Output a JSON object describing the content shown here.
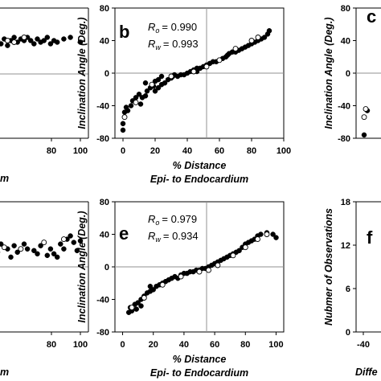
{
  "panels": {
    "a": {
      "xticks": [
        "80",
        "100"
      ],
      "xlabel_fragment": "m"
    },
    "b": {
      "letter": "b",
      "r_o_symbol": "R",
      "r_o_sub": "o",
      "r_o_value": "= 0.990",
      "r_w_symbol": "R",
      "r_w_sub": "w",
      "r_w_value": "= 0.993",
      "ylabel": "Inclination Angle (Deg.)",
      "xlabel_1": "% Distance",
      "xlabel_2": "Epi- to Endocardium"
    },
    "c": {
      "letter": "c",
      "ylabel": "Inclination Angle (Deg.)"
    },
    "d": {
      "xticks": [
        "80",
        "100"
      ],
      "xlabel_fragment": "m"
    },
    "e": {
      "letter": "e",
      "r_o_symbol": "R",
      "r_o_sub": "o",
      "r_o_value": "= 0.979",
      "r_w_symbol": "R",
      "r_w_sub": "w",
      "r_w_value": "= 0.934",
      "ylabel": "Inclination Angle (Deg.)",
      "xlabel_1": "% Distance",
      "xlabel_2": "Epi- to Endocardium"
    },
    "f": {
      "letter": "f",
      "ylabel": "Nubmer of Observations",
      "xlabel_fragment": "Diffe",
      "xtick_first": "-40"
    }
  },
  "colors": {
    "filled_marker": "#000000",
    "open_marker": "#ffffff",
    "axis": "#000000",
    "reference_line": "#909090"
  },
  "chart_data": [
    {
      "id": "a",
      "type": "scatter",
      "xlim": [
        null,
        100
      ],
      "ylim": [
        -80,
        80
      ],
      "xticks": [
        80,
        100
      ],
      "series": [
        {
          "marker": "filled",
          "points": [
            [
              36,
              22
            ],
            [
              38,
              30
            ],
            [
              40,
              28
            ],
            [
              42,
              34
            ],
            [
              44,
              31
            ],
            [
              46,
              36
            ],
            [
              48,
              30
            ],
            [
              50,
              40
            ],
            [
              52,
              36
            ],
            [
              54,
              42
            ],
            [
              56,
              34
            ],
            [
              58,
              40
            ],
            [
              60,
              44
            ],
            [
              62,
              38
            ],
            [
              64,
              42
            ],
            [
              66,
              40
            ],
            [
              68,
              44
            ],
            [
              70,
              40
            ],
            [
              72,
              36
            ],
            [
              74,
              42
            ],
            [
              76,
              38
            ],
            [
              78,
              40
            ],
            [
              80,
              44
            ],
            [
              82,
              36
            ],
            [
              84,
              40
            ],
            [
              86,
              38
            ],
            [
              90,
              42
            ],
            [
              94,
              44
            ],
            [
              100,
              38
            ]
          ]
        },
        {
          "marker": "open",
          "points": [
            [
              38,
              26
            ],
            [
              44,
              34
            ],
            [
              50,
              36
            ],
            [
              56,
              40
            ],
            [
              60,
              38
            ],
            [
              66,
              44
            ]
          ]
        }
      ]
    },
    {
      "id": "b",
      "type": "scatter",
      "title": "b",
      "annotations": [
        "R_o = 0.990",
        "R_w = 0.993"
      ],
      "xlabel": "% Distance Epi- to Endocardium",
      "ylabel": "Inclination Angle (Deg.)",
      "xlim": [
        -5,
        100
      ],
      "ylim": [
        -80,
        80
      ],
      "xticks": [
        0,
        20,
        40,
        60,
        80,
        100
      ],
      "yticks": [
        -80,
        -40,
        0,
        40,
        80
      ],
      "reference_lines": {
        "x": 50,
        "y": 0
      },
      "series": [
        {
          "marker": "filled",
          "points": [
            [
              0,
              -70
            ],
            [
              0,
              -62
            ],
            [
              1,
              -48
            ],
            [
              2,
              -42
            ],
            [
              3,
              -46
            ],
            [
              5,
              -40
            ],
            [
              6,
              -34
            ],
            [
              8,
              -30
            ],
            [
              10,
              -26
            ],
            [
              11,
              -38
            ],
            [
              12,
              -30
            ],
            [
              14,
              -28
            ],
            [
              14,
              -12
            ],
            [
              15,
              -22
            ],
            [
              17,
              -18
            ],
            [
              19,
              -16
            ],
            [
              20,
              -22
            ],
            [
              20,
              -10
            ],
            [
              22,
              -18
            ],
            [
              22,
              -8
            ],
            [
              24,
              -14
            ],
            [
              24,
              -4
            ],
            [
              26,
              -12
            ],
            [
              28,
              -8
            ],
            [
              30,
              -6
            ],
            [
              31,
              -4
            ],
            [
              32,
              -2
            ],
            [
              34,
              -4
            ],
            [
              36,
              -2
            ],
            [
              38,
              -2
            ],
            [
              40,
              0
            ],
            [
              42,
              2
            ],
            [
              44,
              4
            ],
            [
              46,
              6
            ],
            [
              46,
              2
            ],
            [
              48,
              6
            ],
            [
              50,
              8
            ],
            [
              52,
              10
            ],
            [
              54,
              12
            ],
            [
              56,
              14
            ],
            [
              58,
              14
            ],
            [
              60,
              16
            ],
            [
              62,
              18
            ],
            [
              64,
              20
            ],
            [
              65,
              22
            ],
            [
              66,
              24
            ],
            [
              68,
              26
            ],
            [
              70,
              26
            ],
            [
              72,
              28
            ],
            [
              74,
              30
            ],
            [
              76,
              32
            ],
            [
              78,
              34
            ],
            [
              80,
              36
            ],
            [
              82,
              38
            ],
            [
              84,
              40
            ],
            [
              86,
              42
            ],
            [
              88,
              44
            ],
            [
              90,
              48
            ],
            [
              91,
              52
            ]
          ]
        },
        {
          "marker": "open",
          "points": [
            [
              1,
              -54
            ],
            [
              8,
              -36
            ],
            [
              18,
              -14
            ],
            [
              30,
              -4
            ],
            [
              44,
              2
            ],
            [
              52,
              8
            ],
            [
              60,
              16
            ],
            [
              70,
              30
            ],
            [
              80,
              40
            ],
            [
              84,
              44
            ]
          ]
        }
      ]
    },
    {
      "id": "c",
      "type": "scatter",
      "title": "c",
      "ylabel": "Inclination Angle (Deg.)",
      "ylim": [
        -80,
        80
      ],
      "yticks": [
        -80,
        -40,
        0,
        40,
        80
      ],
      "series": [
        {
          "marker": "filled",
          "points": [
            [
              0,
              -76
            ],
            [
              2,
              -46
            ]
          ]
        },
        {
          "marker": "open",
          "points": [
            [
              0,
              -54
            ],
            [
              1,
              -44
            ]
          ]
        }
      ]
    },
    {
      "id": "d",
      "type": "scatter",
      "xlim": [
        null,
        100
      ],
      "ylim": [
        -80,
        80
      ],
      "xticks": [
        80,
        100
      ],
      "series": [
        {
          "marker": "filled",
          "points": [
            [
              36,
              18
            ],
            [
              40,
              24
            ],
            [
              44,
              14
            ],
            [
              46,
              20
            ],
            [
              50,
              18
            ],
            [
              52,
              28
            ],
            [
              56,
              22
            ],
            [
              58,
              12
            ],
            [
              60,
              26
            ],
            [
              62,
              18
            ],
            [
              66,
              28
            ],
            [
              68,
              22
            ],
            [
              72,
              20
            ],
            [
              74,
              16
            ],
            [
              76,
              26
            ],
            [
              80,
              14
            ],
            [
              82,
              22
            ],
            [
              84,
              16
            ],
            [
              86,
              12
            ],
            [
              88,
              28
            ],
            [
              90,
              22
            ],
            [
              92,
              34
            ],
            [
              94,
              38
            ],
            [
              96,
              30
            ],
            [
              98,
              20
            ],
            [
              100,
              32
            ]
          ]
        },
        {
          "marker": "open",
          "points": [
            [
              42,
              30
            ],
            [
              54,
              24
            ],
            [
              64,
              22
            ],
            [
              78,
              30
            ],
            [
              90,
              34
            ]
          ]
        }
      ]
    },
    {
      "id": "e",
      "type": "scatter",
      "title": "e",
      "annotations": [
        "R_o = 0.979",
        "R_w = 0.934"
      ],
      "xlabel": "% Distance Epi- to Endocardium",
      "ylabel": "Inclination Angle (Deg.)",
      "xlim": [
        -5,
        105
      ],
      "ylim": [
        -80,
        80
      ],
      "xticks": [
        0,
        20,
        40,
        60,
        80,
        100
      ],
      "yticks": [
        -80,
        -40,
        0,
        40,
        80
      ],
      "reference_lines": {
        "x": 50,
        "y": 0
      },
      "series": [
        {
          "marker": "filled",
          "points": [
            [
              4,
              -56
            ],
            [
              5,
              -50
            ],
            [
              6,
              -54
            ],
            [
              8,
              -46
            ],
            [
              9,
              -52
            ],
            [
              10,
              -44
            ],
            [
              12,
              -40
            ],
            [
              12,
              -48
            ],
            [
              14,
              -36
            ],
            [
              16,
              -32
            ],
            [
              18,
              -30
            ],
            [
              18,
              -24
            ],
            [
              20,
              -28
            ],
            [
              22,
              -24
            ],
            [
              24,
              -22
            ],
            [
              26,
              -20
            ],
            [
              28,
              -18
            ],
            [
              30,
              -16
            ],
            [
              32,
              -14
            ],
            [
              34,
              -12
            ],
            [
              36,
              -14
            ],
            [
              38,
              -10
            ],
            [
              40,
              -8
            ],
            [
              42,
              -8
            ],
            [
              44,
              -6
            ],
            [
              46,
              -6
            ],
            [
              48,
              -4
            ],
            [
              50,
              -4
            ],
            [
              52,
              -2
            ],
            [
              54,
              -2
            ],
            [
              56,
              0
            ],
            [
              58,
              2
            ],
            [
              60,
              4
            ],
            [
              62,
              6
            ],
            [
              64,
              8
            ],
            [
              66,
              10
            ],
            [
              68,
              12
            ],
            [
              70,
              14
            ],
            [
              72,
              16
            ],
            [
              74,
              18
            ],
            [
              76,
              20
            ],
            [
              78,
              24
            ],
            [
              80,
              28
            ],
            [
              82,
              30
            ],
            [
              84,
              32
            ],
            [
              86,
              34
            ],
            [
              88,
              38
            ],
            [
              90,
              40
            ],
            [
              94,
              42
            ],
            [
              98,
              40
            ],
            [
              100,
              36
            ]
          ]
        },
        {
          "marker": "open",
          "points": [
            [
              6,
              -50
            ],
            [
              14,
              -38
            ],
            [
              26,
              -22
            ],
            [
              38,
              -12
            ],
            [
              50,
              -6
            ],
            [
              56,
              -4
            ],
            [
              62,
              2
            ],
            [
              72,
              14
            ],
            [
              80,
              24
            ],
            [
              88,
              34
            ],
            [
              94,
              40
            ]
          ]
        }
      ]
    },
    {
      "id": "f",
      "type": "bar",
      "title": "f",
      "ylabel": "Nubmer of Observations",
      "ylim": [
        0,
        18
      ],
      "yticks": [
        0,
        6,
        12,
        18
      ],
      "xticks": [
        -40
      ],
      "series": []
    }
  ]
}
